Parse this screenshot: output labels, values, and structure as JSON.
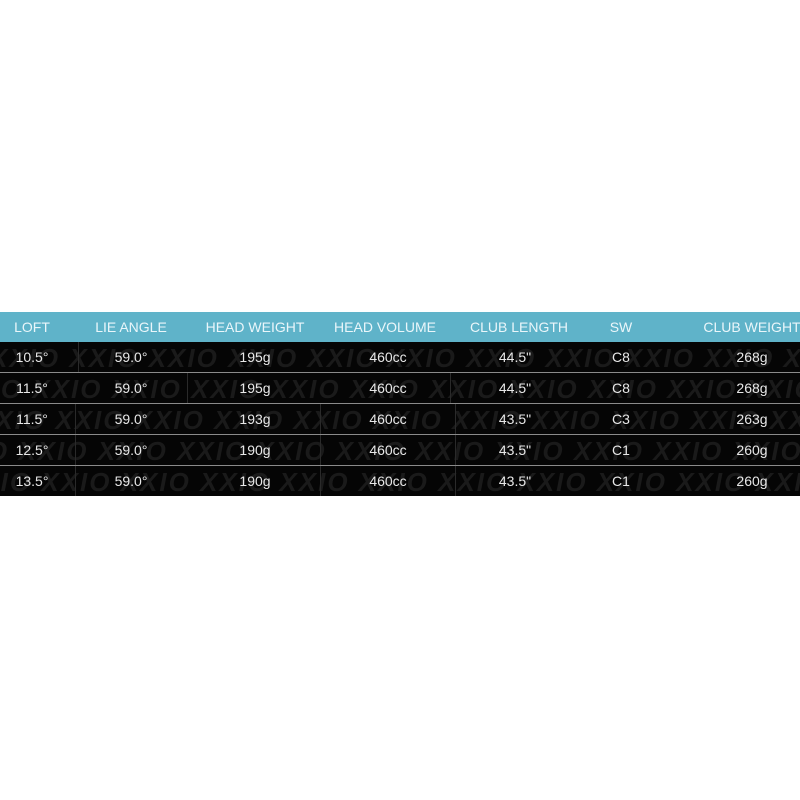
{
  "watermark": "XXIO",
  "colors": {
    "header_bg": "#5fb3c9",
    "row_bg": "#050505",
    "text": "#e8e8e8"
  },
  "headers": [
    "LOFT",
    "LIE ANGLE",
    "HEAD WEIGHT",
    "HEAD VOLUME",
    "CLUB LENGTH",
    "SW",
    "CLUB WEIGHT"
  ],
  "rows": [
    [
      "10.5°",
      "59.0°",
      "195g",
      "460cc",
      "44.5\"",
      "C8",
      "268g"
    ],
    [
      "11.5°",
      "59.0°",
      "195g",
      "460cc",
      "44.5\"",
      "C8",
      "268g"
    ],
    [
      "11.5°",
      "59.0°",
      "193g",
      "460cc",
      "43.5\"",
      "C3",
      "263g"
    ],
    [
      "12.5°",
      "59.0°",
      "190g",
      "460cc",
      "43.5\"",
      "C1",
      "260g"
    ],
    [
      "13.5°",
      "59.0°",
      "190g",
      "460cc",
      "43.5\"",
      "C1",
      "260g"
    ]
  ]
}
